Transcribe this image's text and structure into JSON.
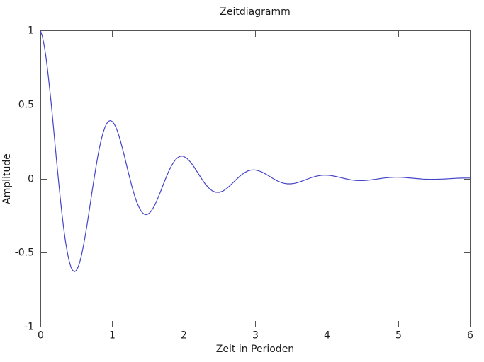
{
  "figure": {
    "title": "Zeitdiagramm",
    "xlabel": "Zeit in Perioden",
    "ylabel": "Amplitude"
  },
  "colors": {
    "background": "#ffffff",
    "frame": "#545454",
    "tick": "#545454",
    "text": "#1c1c1c",
    "curve": "#4545c8"
  },
  "chart_data": {
    "type": "line",
    "title": "Zeitdiagramm",
    "xlabel": "Zeit in Perioden",
    "ylabel": "Amplitude",
    "xlim": [
      0,
      6
    ],
    "ylim": [
      -1,
      1
    ],
    "xticks": [
      0,
      1,
      2,
      3,
      4,
      5,
      6
    ],
    "xtick_labels": [
      "0",
      "1",
      "2",
      "3",
      "4",
      "5",
      "6"
    ],
    "yticks": [
      1,
      0.5,
      0,
      -0.5,
      -1
    ],
    "ytick_labels": [
      "1",
      "0.5",
      "0",
      "-0.5",
      "-1"
    ],
    "grid": false,
    "legend": "none",
    "series": [
      {
        "x": [
          0,
          0.025,
          0.05,
          0.075,
          0.1,
          0.125,
          0.15,
          0.175,
          0.2,
          0.225,
          0.25,
          0.275,
          0.3,
          0.325,
          0.35,
          0.375,
          0.4,
          0.425,
          0.45,
          0.475,
          0.5,
          0.525,
          0.55,
          0.575,
          0.6,
          0.625,
          0.65,
          0.675,
          0.7,
          0.725,
          0.75,
          0.775,
          0.8,
          0.825,
          0.85,
          0.875,
          0.9,
          0.925,
          0.95,
          0.975,
          1,
          1.025,
          1.05,
          1.075,
          1.1,
          1.125,
          1.15,
          1.175,
          1.2,
          1.225,
          1.25,
          1.275,
          1.3,
          1.325,
          1.35,
          1.375,
          1.4,
          1.425,
          1.45,
          1.475,
          1.5,
          1.525,
          1.55,
          1.575,
          1.6,
          1.625,
          1.65,
          1.675,
          1.7,
          1.725,
          1.75,
          1.775,
          1.8,
          1.825,
          1.85,
          1.875,
          1.9,
          1.925,
          1.95,
          1.975,
          2,
          2.05,
          2.1,
          2.15,
          2.2,
          2.25,
          2.3,
          2.35,
          2.4,
          2.45,
          2.5,
          2.55,
          2.6,
          2.65,
          2.7,
          2.75,
          2.8,
          2.85,
          2.9,
          2.95,
          3,
          3.05,
          3.1,
          3.15,
          3.2,
          3.25,
          3.3,
          3.35,
          3.4,
          3.45,
          3.5,
          3.55,
          3.6,
          3.65,
          3.7,
          3.75,
          3.8,
          3.85,
          3.9,
          3.95,
          4,
          4.05,
          4.1,
          4.15,
          4.2,
          4.25,
          4.3,
          4.35,
          4.4,
          4.45,
          4.5,
          4.55,
          4.6,
          4.65,
          4.7,
          4.75,
          4.8,
          4.85,
          4.9,
          4.95,
          5,
          5.05,
          5.1,
          5.15,
          5.2,
          5.25,
          5.3,
          5.35,
          5.4,
          5.45,
          5.5,
          5.55,
          5.6,
          5.65,
          5.7,
          5.75,
          5.8,
          5.85,
          5.9,
          5.95,
          6
        ],
        "y": [
          1,
          0.9645,
          0.9069,
          0.8297,
          0.7357,
          0.6279,
          0.5097,
          0.3845,
          0.2556,
          0.1263,
          0,
          -0.1205,
          -0.2324,
          -0.3334,
          -0.4215,
          -0.4952,
          -0.5533,
          -0.595,
          -0.6202,
          -0.629,
          -0.6219,
          -0.5998,
          -0.564,
          -0.516,
          -0.4575,
          -0.3905,
          -0.317,
          -0.2391,
          -0.1589,
          -0.0786,
          0,
          0.0749,
          0.1445,
          0.2073,
          0.2622,
          0.308,
          0.3441,
          0.37,
          0.3857,
          0.3912,
          0.3867,
          0.373,
          0.3508,
          0.3209,
          0.2845,
          0.2429,
          0.1971,
          0.1487,
          0.0988,
          0.0489,
          0,
          -0.0466,
          -0.0899,
          -0.1289,
          -0.163,
          -0.1915,
          -0.214,
          -0.2301,
          -0.2399,
          -0.2433,
          -0.2405,
          -0.232,
          -0.2181,
          -0.1996,
          -0.177,
          -0.151,
          -0.1226,
          -0.0925,
          -0.0615,
          -0.0304,
          0,
          0.029,
          0.0559,
          0.0802,
          0.1014,
          0.1191,
          0.1331,
          0.1431,
          0.1492,
          0.1513,
          0.1496,
          0.1357,
          0.11,
          0.0762,
          0.0382,
          0,
          -0.0348,
          -0.0631,
          -0.0828,
          -0.0928,
          -0.093,
          -0.0844,
          -0.0684,
          -0.0474,
          -0.0238,
          0,
          0.0216,
          0.0392,
          0.0515,
          0.0577,
          0.0578,
          0.0525,
          0.0426,
          0.0295,
          0.0148,
          0,
          -0.0134,
          -0.0244,
          -0.032,
          -0.0359,
          -0.036,
          -0.0326,
          -0.0265,
          -0.0183,
          -0.0092,
          0,
          0.0084,
          0.0152,
          0.0199,
          0.0223,
          0.0224,
          0.0203,
          0.0165,
          0.0114,
          0.0057,
          0,
          -0.0052,
          -0.0094,
          -0.0124,
          -0.0139,
          -0.0139,
          -0.0126,
          -0.0102,
          -0.0071,
          -0.0036,
          0,
          0.0032,
          0.0059,
          0.0077,
          0.0086,
          0.0087,
          0.0079,
          0.0064,
          0.0044,
          0.0022,
          0,
          -0.002,
          -0.0037,
          -0.0048,
          -0.0054,
          -0.0054,
          -0.0049,
          -0.004,
          -0.0027,
          -0.0014,
          0,
          0.0013,
          0.0023,
          0.003,
          0.0033,
          0.0033
        ]
      }
    ]
  }
}
